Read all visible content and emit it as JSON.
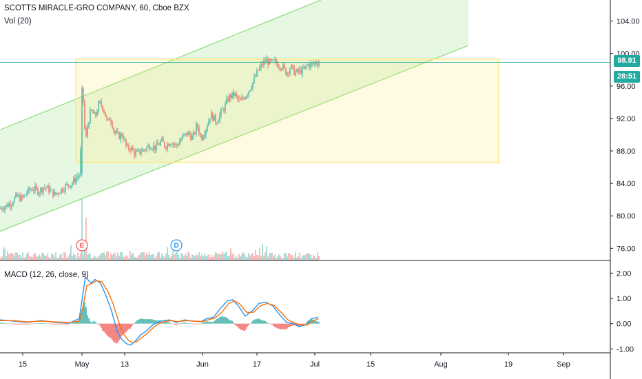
{
  "header": {
    "title": "SCOTTS MIRACLE-GRO COMPANY, 60, Cboe BZX",
    "volume_label": "Vol (20)",
    "macd_label": "MACD (12, 26, close, 9)"
  },
  "price_tags": {
    "last_price": "98.91",
    "countdown": "28:51"
  },
  "colors": {
    "up": "#26a69a",
    "down": "#ef5350",
    "channel": "#8fe07a",
    "box": "#ffe97a",
    "macd_line": "#2196f3",
    "signal_line": "#ff6d00",
    "price_tag": "#22aaa0"
  },
  "events": [
    {
      "label": "E",
      "type": "earnings"
    },
    {
      "label": "D",
      "type": "dividend"
    }
  ],
  "chart_data": [
    {
      "type": "candlestick",
      "title": "SCOTTS MIRACLE-GRO COMPANY, 60, Cboe BZX",
      "ylim": [
        74.5,
        106.6
      ],
      "y_ticks": [
        "104.00",
        "100.00",
        "96.00",
        "92.00",
        "88.00",
        "84.00",
        "80.00",
        "76.00"
      ],
      "x_tick_labels": [
        "15",
        "May",
        "13",
        "Jun",
        "17",
        "Jul",
        "15",
        "Aug",
        "19",
        "Sep"
      ],
      "last_price": 98.91,
      "close_path": [
        [
          0,
          80.9
        ],
        [
          8,
          81.2
        ],
        [
          16,
          81.6
        ],
        [
          24,
          82.4
        ],
        [
          32,
          82.1
        ],
        [
          40,
          83.0
        ],
        [
          48,
          83.4
        ],
        [
          56,
          83.0
        ],
        [
          64,
          83.6
        ],
        [
          72,
          83.2
        ],
        [
          80,
          82.6
        ],
        [
          88,
          83.2
        ],
        [
          96,
          83.7
        ],
        [
          104,
          84.0
        ],
        [
          110,
          84.6
        ],
        [
          116,
          85.2
        ],
        [
          120,
          95.8
        ],
        [
          124,
          89.0
        ],
        [
          127,
          91.0
        ],
        [
          132,
          93.0
        ],
        [
          138,
          92.2
        ],
        [
          144,
          93.9
        ],
        [
          150,
          93.3
        ],
        [
          156,
          91.4
        ],
        [
          160,
          92.2
        ],
        [
          166,
          90.3
        ],
        [
          172,
          89.8
        ],
        [
          178,
          90.0
        ],
        [
          184,
          88.3
        ],
        [
          190,
          88.4
        ],
        [
          196,
          87.6
        ],
        [
          202,
          87.9
        ],
        [
          210,
          88.2
        ],
        [
          218,
          88.7
        ],
        [
          226,
          88.4
        ],
        [
          234,
          89.2
        ],
        [
          240,
          88.6
        ],
        [
          248,
          89.2
        ],
        [
          256,
          88.6
        ],
        [
          264,
          89.6
        ],
        [
          272,
          90.2
        ],
        [
          280,
          89.6
        ],
        [
          286,
          91.2
        ],
        [
          292,
          89.6
        ],
        [
          298,
          90.6
        ],
        [
          306,
          92.5
        ],
        [
          314,
          91.6
        ],
        [
          320,
          92.6
        ],
        [
          326,
          93.4
        ],
        [
          332,
          94.6
        ],
        [
          340,
          95.0
        ],
        [
          348,
          94.0
        ],
        [
          356,
          94.8
        ],
        [
          362,
          95.6
        ],
        [
          368,
          96.6
        ],
        [
          374,
          97.8
        ],
        [
          380,
          98.6
        ],
        [
          386,
          99.2
        ],
        [
          392,
          98.8
        ],
        [
          398,
          99.0
        ],
        [
          404,
          98.6
        ],
        [
          410,
          98.4
        ],
        [
          416,
          97.6
        ],
        [
          422,
          98.4
        ],
        [
          428,
          97.6
        ],
        [
          434,
          97.8
        ],
        [
          440,
          97.9
        ],
        [
          446,
          98.6
        ],
        [
          452,
          98.6
        ],
        [
          458,
          98.9
        ],
        [
          463,
          98.91
        ]
      ],
      "support_channel": {
        "upper_line": [
          [
            0,
            90.6
          ],
          [
            466,
            106.6
          ]
        ],
        "lower_line": [
          [
            0,
            78.1
          ],
          [
            680,
            101.0
          ]
        ],
        "shaded_area_right_edge": 680
      },
      "range_box": {
        "top": 99.3,
        "bottom": 86.6,
        "from_x": 110,
        "to_x": 724
      }
    },
    {
      "type": "bar",
      "title": "Vol (20)",
      "note": "volume histogram under price",
      "spike_positions": [
        119,
        125
      ]
    },
    {
      "type": "line",
      "title": "MACD (12, 26, close, 9)",
      "ylim": [
        -1.1,
        2.2
      ],
      "y_ticks": [
        "2.00",
        "1.00",
        "0.00",
        "-1.00"
      ],
      "series": [
        {
          "name": "",
          "points": [
            [
              0,
              0.15
            ],
            [
              20,
              0.1
            ],
            [
              40,
              0.05
            ],
            [
              60,
              0.12
            ],
            [
              80,
              0.05
            ],
            [
              100,
              0.02
            ],
            [
              115,
              0.2
            ],
            [
              120,
              1.1
            ],
            [
              124,
              1.85
            ],
            [
              132,
              1.6
            ],
            [
              138,
              1.75
            ],
            [
              146,
              1.6
            ],
            [
              154,
              1.1
            ],
            [
              162,
              0.5
            ],
            [
              170,
              -0.3
            ],
            [
              176,
              -0.6
            ],
            [
              184,
              -0.8
            ],
            [
              190,
              -0.85
            ],
            [
              196,
              -0.7
            ],
            [
              204,
              -0.45
            ],
            [
              212,
              -0.3
            ],
            [
              222,
              -0.05
            ],
            [
              232,
              0.1
            ],
            [
              246,
              0.15
            ],
            [
              256,
              0.05
            ],
            [
              268,
              0.15
            ],
            [
              280,
              0.1
            ],
            [
              292,
              0.08
            ],
            [
              300,
              0.2
            ],
            [
              310,
              0.25
            ],
            [
              320,
              0.6
            ],
            [
              330,
              0.9
            ],
            [
              338,
              0.95
            ],
            [
              346,
              0.7
            ],
            [
              356,
              0.3
            ],
            [
              366,
              0.5
            ],
            [
              376,
              0.8
            ],
            [
              386,
              0.85
            ],
            [
              396,
              0.7
            ],
            [
              406,
              0.35
            ],
            [
              416,
              0.05
            ],
            [
              426,
              0.0
            ],
            [
              434,
              -0.12
            ],
            [
              444,
              -0.05
            ],
            [
              452,
              0.2
            ],
            [
              462,
              0.25
            ]
          ]
        },
        {
          "name": "",
          "points": [
            [
              0,
              0.12
            ],
            [
              20,
              0.12
            ],
            [
              40,
              0.07
            ],
            [
              60,
              0.1
            ],
            [
              80,
              0.07
            ],
            [
              100,
              0.04
            ],
            [
              115,
              0.1
            ],
            [
              120,
              0.6
            ],
            [
              126,
              1.5
            ],
            [
              134,
              1.6
            ],
            [
              140,
              1.7
            ],
            [
              148,
              1.65
            ],
            [
              156,
              1.3
            ],
            [
              164,
              0.8
            ],
            [
              172,
              0.1
            ],
            [
              178,
              -0.35
            ],
            [
              186,
              -0.65
            ],
            [
              192,
              -0.75
            ],
            [
              198,
              -0.72
            ],
            [
              206,
              -0.55
            ],
            [
              214,
              -0.38
            ],
            [
              224,
              -0.12
            ],
            [
              234,
              0.05
            ],
            [
              248,
              0.12
            ],
            [
              258,
              0.08
            ],
            [
              270,
              0.12
            ],
            [
              282,
              0.1
            ],
            [
              294,
              0.08
            ],
            [
              302,
              0.15
            ],
            [
              312,
              0.22
            ],
            [
              322,
              0.45
            ],
            [
              332,
              0.8
            ],
            [
              340,
              0.9
            ],
            [
              348,
              0.78
            ],
            [
              358,
              0.45
            ],
            [
              368,
              0.45
            ],
            [
              378,
              0.7
            ],
            [
              388,
              0.8
            ],
            [
              398,
              0.72
            ],
            [
              408,
              0.45
            ],
            [
              418,
              0.15
            ],
            [
              428,
              0.02
            ],
            [
              436,
              -0.05
            ],
            [
              446,
              -0.05
            ],
            [
              454,
              0.1
            ],
            [
              462,
              0.2
            ]
          ]
        }
      ]
    }
  ]
}
